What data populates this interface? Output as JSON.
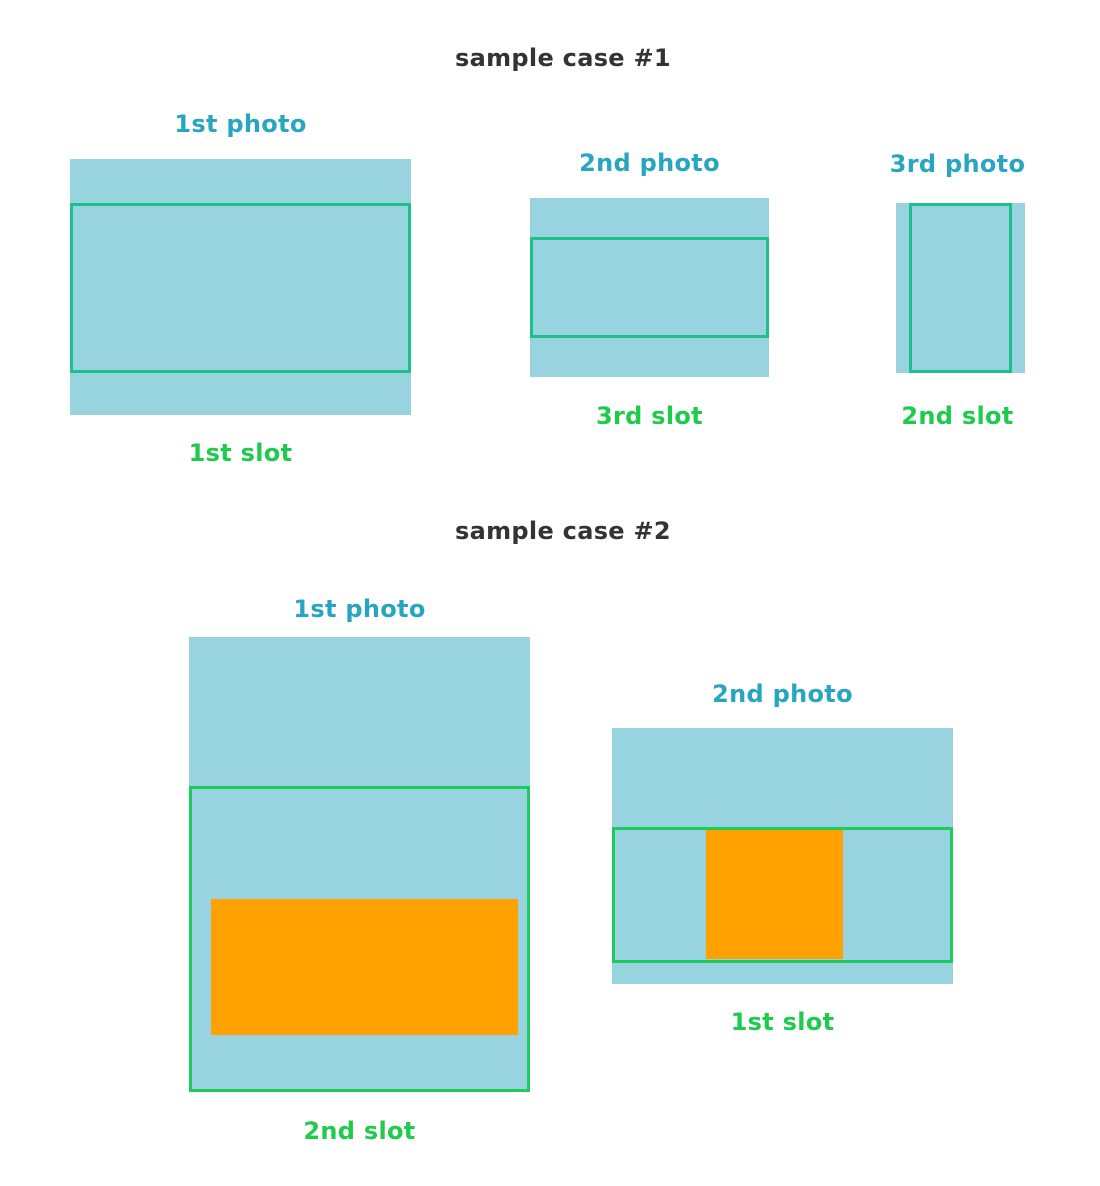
{
  "colors": {
    "photo_fill": "#98d3e0",
    "photo_label": "#28a5c0",
    "slot_border_case1": "#1fbf8a",
    "slot_border_case2": "#1ecb5c",
    "slot_label": "#1ecb4c",
    "object_fill": "#ffa200",
    "heading": "#333333"
  },
  "case1": {
    "title": "sample case #1",
    "photo1_label": "1st photo",
    "photo1_slot": "1st slot",
    "photo2_label": "2nd photo",
    "photo2_slot": "3rd slot",
    "photo3_label": "3rd photo",
    "photo3_slot": "2nd slot"
  },
  "case2": {
    "title": "sample case #2",
    "photo1_label": "1st photo",
    "photo1_slot": "2nd slot",
    "photo2_label": "2nd photo",
    "photo2_slot": "1st slot"
  }
}
